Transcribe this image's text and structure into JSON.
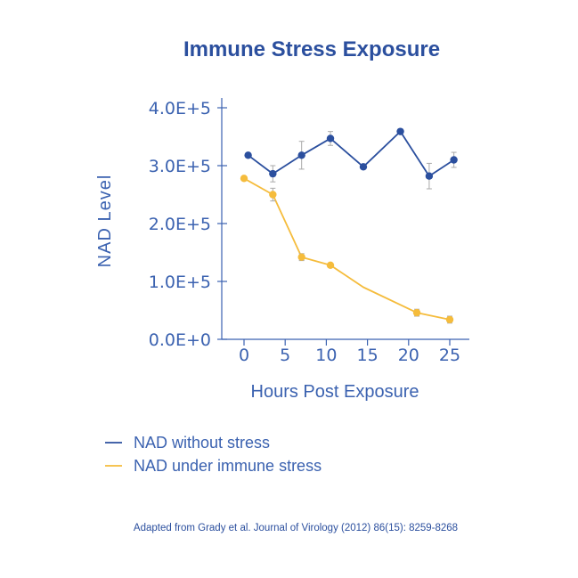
{
  "chart_data": {
    "type": "line",
    "title": "Immune Stress Exposure",
    "xlabel": "Hours Post Exposure",
    "ylabel": "NAD Level",
    "xlim": [
      -1.5,
      27.5
    ],
    "ylim": [
      0,
      400000
    ],
    "x_ticks": [
      0,
      5,
      10,
      15,
      20,
      25
    ],
    "x_tick_labels": [
      "0",
      "5",
      "10",
      "15",
      "20",
      "25"
    ],
    "y_ticks": [
      0,
      100000,
      200000,
      300000,
      400000
    ],
    "y_tick_labels": [
      "0.0E+0",
      "1.0E+5",
      "2.0E+5",
      "3.0E+5",
      "4.0E+5"
    ],
    "grid": false,
    "legend_position": "bottom-left",
    "series": [
      {
        "name": "NAD without stress",
        "color": "#2b4f9e",
        "x": [
          0.5,
          3.5,
          7,
          10.5,
          14.5,
          19,
          22.5,
          25.5
        ],
        "y": [
          318000,
          286000,
          318000,
          347000,
          298000,
          359000,
          282000,
          310000
        ],
        "error": [
          0,
          14000,
          24000,
          12000,
          0,
          0,
          22000,
          13000
        ]
      },
      {
        "name": "NAD under immune stress",
        "color": "#f5bc3c",
        "x": [
          0,
          3.5,
          7,
          10.5,
          14.5,
          21,
          25
        ],
        "y": [
          278000,
          250000,
          142000,
          128000,
          90000,
          46000,
          34000
        ],
        "error": [
          0,
          11000,
          6000,
          0,
          0,
          6000,
          6000
        ],
        "markers": [
          true,
          true,
          true,
          true,
          false,
          true,
          true
        ]
      }
    ],
    "source": "Adapted from Grady et al. Journal of Virology (2012) 86(15): 8259-8268"
  }
}
